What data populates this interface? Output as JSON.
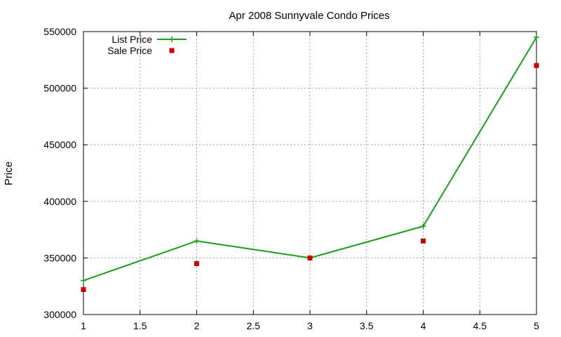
{
  "chart_data": {
    "type": "line",
    "title": "Apr 2008 Sunnyvale Condo Prices",
    "xlabel": "",
    "ylabel": "Price",
    "xlim": [
      1,
      5
    ],
    "ylim": [
      300000,
      550000
    ],
    "x_ticks": [
      "1",
      "1.5",
      "2",
      "2.5",
      "3",
      "3.5",
      "4",
      "4.5",
      "5"
    ],
    "y_ticks": [
      "300000",
      "350000",
      "400000",
      "450000",
      "500000",
      "550000"
    ],
    "grid": true,
    "legend_position": "top-left",
    "series": [
      {
        "name": "List Price",
        "style": "linespoints",
        "marker": "plus",
        "color": "#1a9e1a",
        "x": [
          1,
          2,
          3,
          4,
          5
        ],
        "y": [
          330000,
          365000,
          350000,
          378000,
          545000
        ]
      },
      {
        "name": "Sale Price",
        "style": "points",
        "marker": "square",
        "color": "#cc0000",
        "x": [
          1,
          2,
          3,
          4,
          5
        ],
        "y": [
          322000,
          345000,
          350000,
          365000,
          520000
        ]
      }
    ]
  }
}
